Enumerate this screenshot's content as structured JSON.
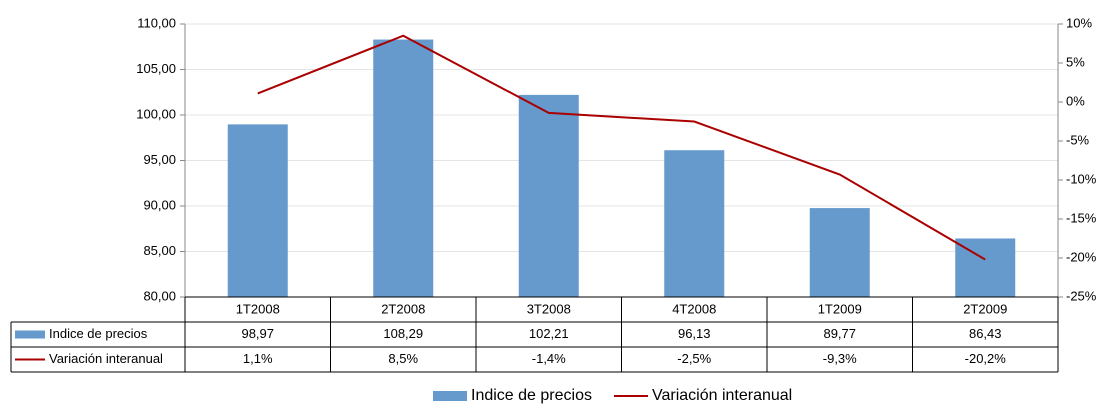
{
  "chart_data": {
    "type": "bar-line",
    "categories": [
      "1T2008",
      "2T2008",
      "3T2008",
      "4T2008",
      "1T2009",
      "2T2009"
    ],
    "series": [
      {
        "name": "Indice de precios",
        "type": "bar",
        "color": "#6699cc",
        "axis": "y",
        "values": [
          98.97,
          108.29,
          102.21,
          96.13,
          89.77,
          86.43
        ],
        "value_labels": [
          "98,97",
          "108,29",
          "102,21",
          "96,13",
          "89,77",
          "86,43"
        ]
      },
      {
        "name": "Variación interanual",
        "type": "line",
        "color": "#aa0000",
        "axis": "y2",
        "values": [
          1.1,
          8.5,
          -1.4,
          -2.5,
          -9.3,
          -20.2
        ],
        "value_labels": [
          "1,1%",
          "8,5%",
          "-1,4%",
          "-2,5%",
          "-9,3%",
          "-20,2%"
        ]
      }
    ],
    "ylim": [
      80,
      110
    ],
    "yticks": [
      {
        "value": 80,
        "label": "80,00"
      },
      {
        "value": 85,
        "label": "85,00"
      },
      {
        "value": 90,
        "label": "90,00"
      },
      {
        "value": 95,
        "label": "95,00"
      },
      {
        "value": 100,
        "label": "100,00"
      },
      {
        "value": 105,
        "label": "105,00"
      },
      {
        "value": 110,
        "label": "110,00"
      }
    ],
    "y2lim": [
      -25,
      10
    ],
    "y2ticks": [
      {
        "value": -25,
        "label": "-25%"
      },
      {
        "value": -20,
        "label": "-20%"
      },
      {
        "value": -15,
        "label": "-15%"
      },
      {
        "value": -10,
        "label": "-10%"
      },
      {
        "value": -5,
        "label": "-5%"
      },
      {
        "value": 0,
        "label": "0%"
      },
      {
        "value": 5,
        "label": "5%"
      },
      {
        "value": 10,
        "label": "10%"
      }
    ],
    "grid": true
  }
}
